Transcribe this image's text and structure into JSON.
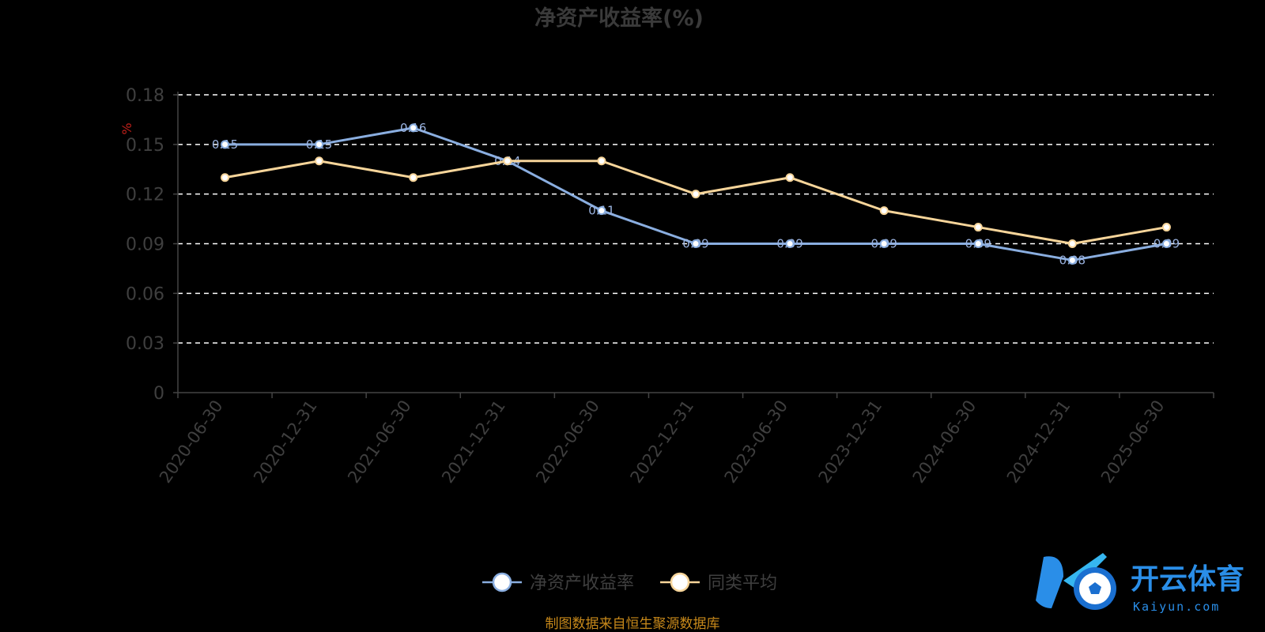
{
  "chart_data": {
    "type": "line",
    "title": "净资产收益率(%)",
    "ylabel": "%",
    "categories": [
      "2020-06-30",
      "2020-12-31",
      "2021-06-30",
      "2021-12-31",
      "2022-06-30",
      "2022-12-31",
      "2023-06-30",
      "2023-12-31",
      "2024-06-30",
      "2024-12-31",
      "2025-06-30"
    ],
    "ylim": [
      0,
      0.18
    ],
    "yticks": [
      "0",
      "0.03",
      "0.06",
      "0.09",
      "0.12",
      "0.15",
      "0.18"
    ],
    "grid": true,
    "legend_position": "bottom",
    "series": [
      {
        "name": "净资产收益率",
        "color": "#8aaee0",
        "values": [
          0.15,
          0.15,
          0.16,
          0.14,
          0.11,
          0.09,
          0.09,
          0.09,
          0.09,
          0.08,
          0.09
        ]
      },
      {
        "name": "同类平均",
        "color": "#f7d59a",
        "values": [
          0.13,
          0.14,
          0.13,
          0.14,
          0.14,
          0.12,
          0.13,
          0.11,
          0.1,
          0.09,
          0.1
        ]
      }
    ]
  },
  "source_note": "制图数据来自恒生聚源数据库",
  "watermark": {
    "name": "开云体育",
    "sub": "Kaiyun.com"
  }
}
